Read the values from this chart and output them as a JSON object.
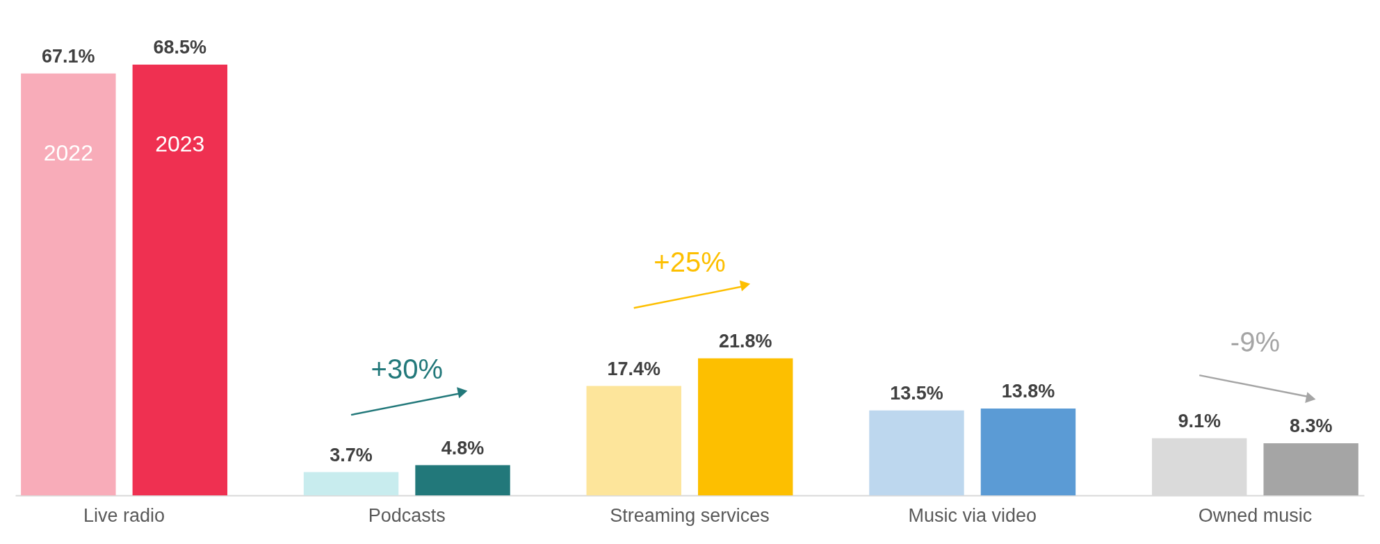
{
  "chart_data": {
    "type": "bar",
    "categories": [
      "Live radio",
      "Podcasts",
      "Streaming services",
      "Music via video",
      "Owned music"
    ],
    "series": [
      {
        "name": "2022",
        "colors": [
          "#f8acb9",
          "#c8ecee",
          "#fde59b",
          "#bdd7ee",
          "#dadada"
        ],
        "values": [
          67.1,
          3.7,
          17.4,
          13.5,
          9.1
        ],
        "value_labels": [
          "67.1%",
          "3.7%",
          "17.4%",
          "13.5%",
          "9.1%"
        ]
      },
      {
        "name": "2023",
        "colors": [
          "#ef3051",
          "#22787a",
          "#fdbf00",
          "#5b9bd5",
          "#a5a5a5"
        ],
        "values": [
          68.5,
          4.8,
          21.8,
          13.8,
          8.3
        ],
        "value_labels": [
          "68.5%",
          "4.8%",
          "21.8%",
          "13.8%",
          "8.3%"
        ]
      }
    ],
    "legend": false,
    "grid": false,
    "annotations": [
      "+30%",
      "+25%",
      "-9%"
    ]
  }
}
